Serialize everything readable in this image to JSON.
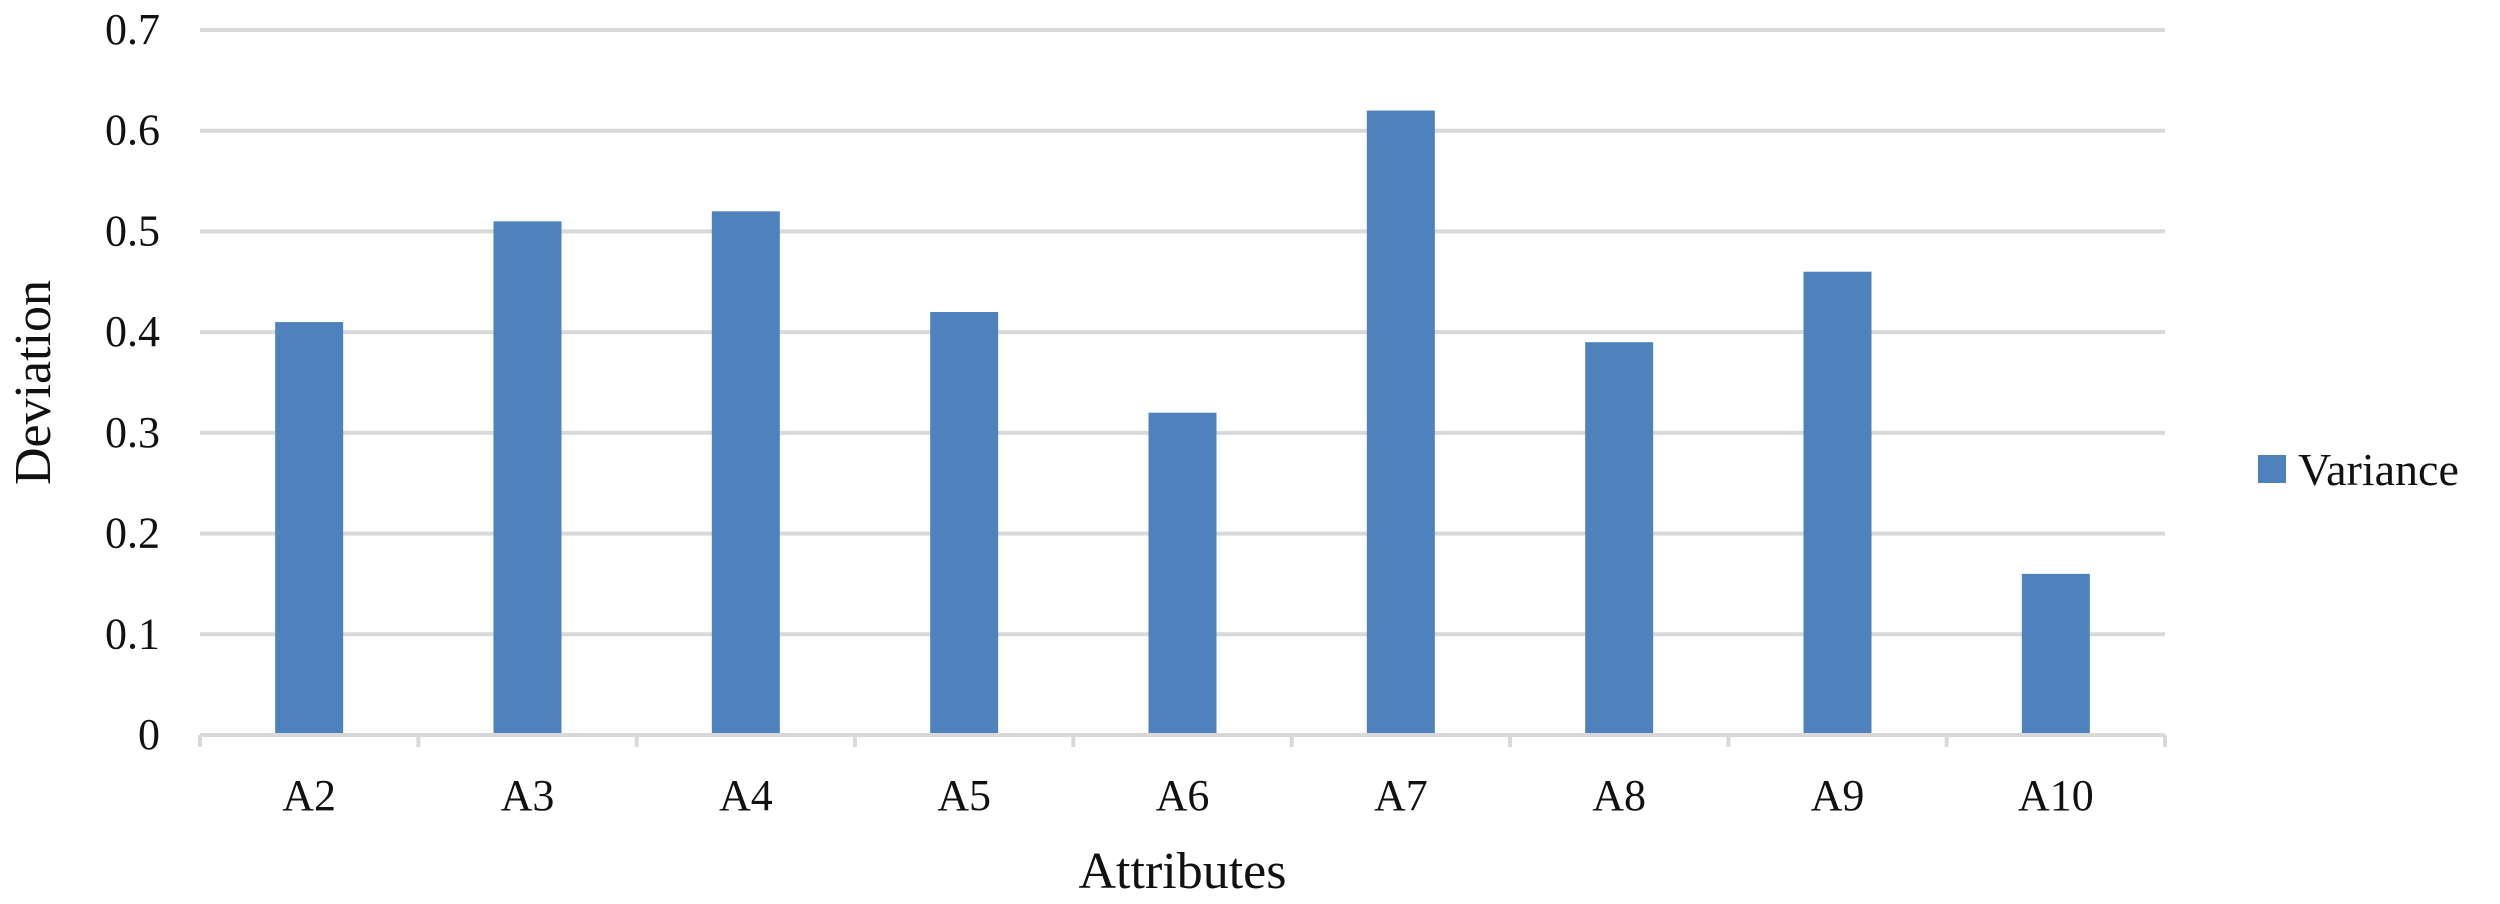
{
  "chart_data": {
    "type": "bar",
    "categories": [
      "A2",
      "A3",
      "A4",
      "A5",
      "A6",
      "A7",
      "A8",
      "A9",
      "A10"
    ],
    "series": [
      {
        "name": "Variance",
        "values": [
          0.41,
          0.51,
          0.52,
          0.42,
          0.32,
          0.62,
          0.39,
          0.46,
          0.16
        ],
        "color": "#4f81bd"
      }
    ],
    "xlabel": "Attributes",
    "ylabel": "Deviation",
    "ylim": [
      0,
      0.7
    ],
    "yticks": [
      "0",
      "0.1",
      "0.2",
      "0.3",
      "0.4",
      "0.5",
      "0.6",
      "0.7"
    ],
    "grid": true,
    "grid_color": "#d9d9d9",
    "legend": {
      "placement": "right",
      "entries": [
        "Variance"
      ]
    }
  }
}
